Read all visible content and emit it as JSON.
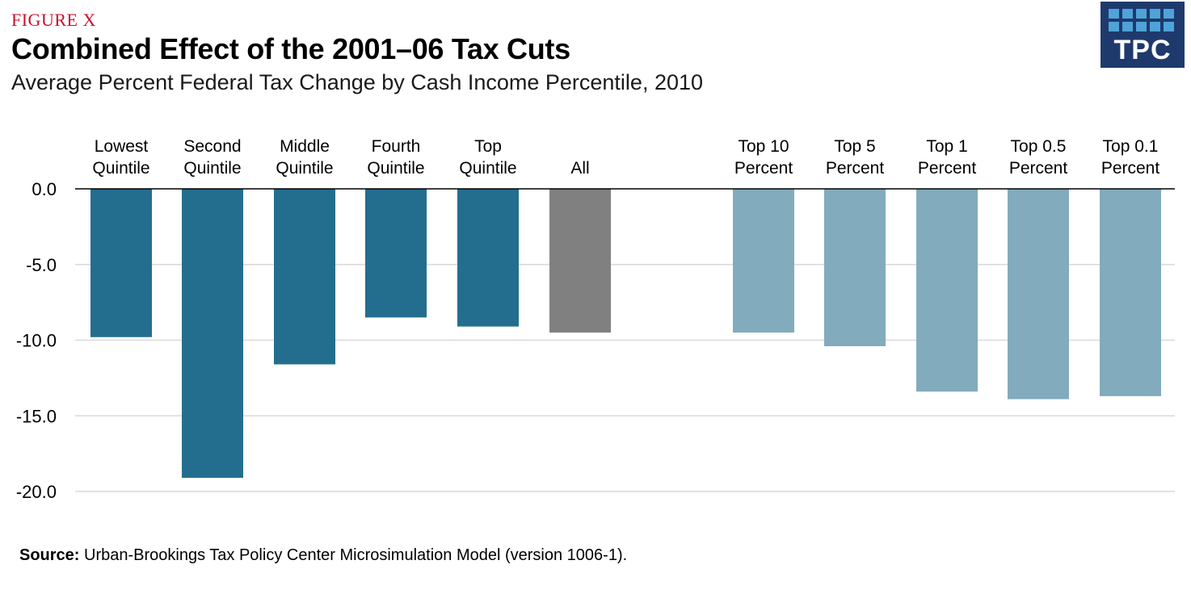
{
  "figure_label": "FIGURE X",
  "title": "Combined Effect of the 2001–06 Tax Cuts",
  "subtitle": "Average Percent Federal Tax Change by Cash Income Percentile, 2010",
  "logo_text": "TPC",
  "source_label": "Source:",
  "source_text": " Urban-Brookings Tax Policy Center Microsimulation Model (version 1006-1).",
  "colors": {
    "quintile": "#236e8e",
    "all": "#808080",
    "top": "#82abbd",
    "grid": "#d9d9d9",
    "axis": "#000000",
    "logo_bg": "#1e3a6d",
    "logo_square": "#4fa3d8"
  },
  "chart_data": {
    "type": "bar",
    "categories": [
      [
        "Lowest",
        "Quintile"
      ],
      [
        "Second",
        "Quintile"
      ],
      [
        "Middle",
        "Quintile"
      ],
      [
        "Fourth",
        "Quintile"
      ],
      [
        "Top",
        "Quintile"
      ],
      [
        "All"
      ],
      [
        "Top 10",
        "Percent"
      ],
      [
        "Top 5",
        "Percent"
      ],
      [
        "Top 1",
        "Percent"
      ],
      [
        "Top 0.5",
        "Percent"
      ],
      [
        "Top 0.1",
        "Percent"
      ]
    ],
    "values": [
      -9.8,
      -19.1,
      -11.6,
      -8.5,
      -9.1,
      -9.5,
      -9.5,
      -10.4,
      -13.4,
      -13.9,
      -13.7
    ],
    "groups": [
      "quintile",
      "quintile",
      "quintile",
      "quintile",
      "quintile",
      "all",
      "top",
      "top",
      "top",
      "top",
      "top"
    ],
    "y_ticks": [
      "0.0",
      "-5.0",
      "-10.0",
      "-15.0",
      "-20.0"
    ],
    "ylim": [
      -20,
      0
    ],
    "grid": true,
    "xlabel": "",
    "ylabel": ""
  }
}
